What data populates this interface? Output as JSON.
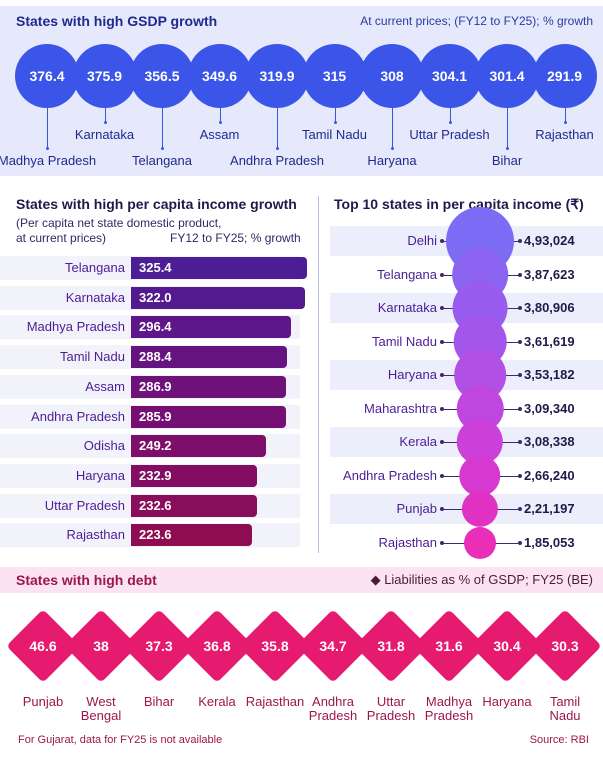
{
  "gsdp": {
    "title": "States with high GSDP growth",
    "subtitle": "At current prices; (FY12 to FY25); % growth",
    "color": "#3a55e8"
  },
  "per_capita_growth": {
    "title": "States with high per capita income growth",
    "subtitle_line1": "(Per capita net state domestic product,",
    "subtitle_line2": "at current prices)",
    "subtitle_line3": "FY12 to FY25; % growth"
  },
  "per_capita_top": {
    "title": "Top 10 states in per capita income (₹)"
  },
  "debt": {
    "title": "States with high debt",
    "subtitle": "◆ Liabilities as % of GSDP; FY25 (BE)",
    "color": "#e61a6f"
  },
  "footer": {
    "note": "For Gujarat, data for FY25 is not available",
    "source": "Source: RBI"
  },
  "chart_data": [
    {
      "type": "bubble",
      "title": "States with high GSDP growth",
      "subtitle": "At current prices; (FY12 to FY25); % growth",
      "categories": [
        "Madhya Pradesh",
        "Karnataka",
        "Telangana",
        "Assam",
        "Andhra Pradesh",
        "Tamil Nadu",
        "Haryana",
        "Uttar Pradesh",
        "Bihar",
        "Rajasthan"
      ],
      "value_labels": [
        "376.4",
        "375.9",
        "356.5",
        "349.6",
        "319.9",
        "315",
        "308",
        "304.1",
        "301.4",
        "291.9"
      ],
      "values": [
        376.4,
        375.9,
        356.5,
        349.6,
        319.9,
        315,
        308,
        304.1,
        301.4,
        291.9
      ]
    },
    {
      "type": "bar",
      "orientation": "horizontal",
      "title": "States with high per capita income growth",
      "categories": [
        "Telangana",
        "Karnataka",
        "Madhya Pradesh",
        "Tamil Nadu",
        "Assam",
        "Andhra Pradesh",
        "Odisha",
        "Haryana",
        "Uttar Pradesh",
        "Rajasthan"
      ],
      "value_labels": [
        "325.4",
        "322.0",
        "296.4",
        "288.4",
        "286.9",
        "285.9",
        "249.2",
        "232.9",
        "232.6",
        "223.6"
      ],
      "values": [
        325.4,
        322.0,
        296.4,
        288.4,
        286.9,
        285.9,
        249.2,
        232.9,
        232.6,
        223.6
      ],
      "colors": [
        "#4c1d95",
        "#55198f",
        "#5e1688",
        "#661382",
        "#6e117a",
        "#760f73",
        "#7d0e6a",
        "#830d62",
        "#880d5a",
        "#8d0c52"
      ]
    },
    {
      "type": "bubble",
      "title": "Top 10 states in per capita income (₹)",
      "categories": [
        "Delhi",
        "Telangana",
        "Karnataka",
        "Tamil Nadu",
        "Haryana",
        "Maharashtra",
        "Kerala",
        "Andhra Pradesh",
        "Punjab",
        "Rajasthan"
      ],
      "value_labels": [
        "4,93,024",
        "3,87,623",
        "3,80,906",
        "3,61,619",
        "3,53,182",
        "3,09,340",
        "3,08,338",
        "2,66,240",
        "2,21,197",
        "1,85,053"
      ],
      "values": [
        493024,
        387623,
        380906,
        361619,
        353182,
        309340,
        308338,
        266240,
        221197,
        185053
      ],
      "colors": [
        "#7c6cf5",
        "#8b64f2",
        "#985dee",
        "#a556ea",
        "#b24fe5",
        "#bf47e0",
        "#cb40d9",
        "#d639cf",
        "#e033c4",
        "#ea2eb8"
      ]
    },
    {
      "type": "diamond",
      "title": "States with high debt",
      "subtitle": "Liabilities as % of GSDP; FY25 (BE)",
      "categories": [
        [
          "Punjab"
        ],
        [
          "West",
          "Bengal"
        ],
        [
          "Bihar"
        ],
        [
          "Kerala"
        ],
        [
          "Rajasthan"
        ],
        [
          "Andhra",
          "Pradesh"
        ],
        [
          "Uttar",
          "Pradesh"
        ],
        [
          "Madhya",
          "Pradesh"
        ],
        [
          "Haryana"
        ],
        [
          "Tamil",
          "Nadu"
        ]
      ],
      "value_labels": [
        "46.6",
        "38",
        "37.3",
        "36.8",
        "35.8",
        "34.7",
        "31.8",
        "31.6",
        "30.4",
        "30.3"
      ],
      "values": [
        46.6,
        38,
        37.3,
        36.8,
        35.8,
        34.7,
        31.8,
        31.6,
        30.4,
        30.3
      ]
    }
  ]
}
